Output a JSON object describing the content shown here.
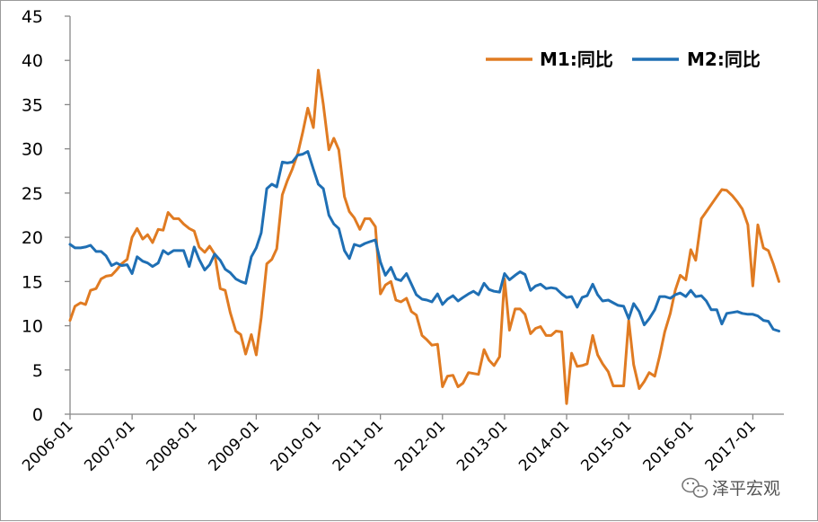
{
  "chart_data": {
    "type": "line",
    "title": "",
    "xlabel": "",
    "ylabel": "",
    "ylim": [
      0,
      45
    ],
    "yticks": [
      0,
      5,
      10,
      15,
      20,
      25,
      30,
      35,
      40,
      45
    ],
    "xlim": [
      2006.0,
      2017.5
    ],
    "xticks": [
      {
        "label": "2006-01",
        "t": 2006
      },
      {
        "label": "2007-01",
        "t": 2007
      },
      {
        "label": "2008-01",
        "t": 2008
      },
      {
        "label": "2009-01",
        "t": 2009
      },
      {
        "label": "2010-01",
        "t": 2010
      },
      {
        "label": "2011-01",
        "t": 2011
      },
      {
        "label": "2012-01",
        "t": 2012
      },
      {
        "label": "2013-01",
        "t": 2013
      },
      {
        "label": "2014-01",
        "t": 2014
      },
      {
        "label": "2015-01",
        "t": 2015
      },
      {
        "label": "2016-01",
        "t": 2016
      },
      {
        "label": "2017-01",
        "t": 2017
      }
    ],
    "grid": false,
    "legend_position": "top-right",
    "series": [
      {
        "name": "M1:同比",
        "color": "#e07b22",
        "values": [
          [
            2006.0,
            10.6
          ],
          [
            2006.08,
            12.2
          ],
          [
            2006.17,
            12.6
          ],
          [
            2006.25,
            12.4
          ],
          [
            2006.33,
            14.0
          ],
          [
            2006.42,
            14.2
          ],
          [
            2006.5,
            15.3
          ],
          [
            2006.58,
            15.6
          ],
          [
            2006.67,
            15.7
          ],
          [
            2006.75,
            16.3
          ],
          [
            2006.83,
            17.0
          ],
          [
            2006.92,
            17.5
          ],
          [
            2007.0,
            20.0
          ],
          [
            2007.08,
            21.0
          ],
          [
            2007.17,
            19.8
          ],
          [
            2007.25,
            20.3
          ],
          [
            2007.33,
            19.4
          ],
          [
            2007.42,
            20.9
          ],
          [
            2007.5,
            20.8
          ],
          [
            2007.58,
            22.8
          ],
          [
            2007.67,
            22.1
          ],
          [
            2007.75,
            22.1
          ],
          [
            2007.83,
            21.5
          ],
          [
            2007.92,
            21.0
          ],
          [
            2008.0,
            20.7
          ],
          [
            2008.08,
            18.9
          ],
          [
            2008.17,
            18.3
          ],
          [
            2008.25,
            19.0
          ],
          [
            2008.33,
            18.1
          ],
          [
            2008.42,
            14.2
          ],
          [
            2008.5,
            14.0
          ],
          [
            2008.58,
            11.5
          ],
          [
            2008.67,
            9.4
          ],
          [
            2008.75,
            9.0
          ],
          [
            2008.83,
            6.8
          ],
          [
            2008.92,
            9.0
          ],
          [
            2009.0,
            6.7
          ],
          [
            2009.08,
            10.9
          ],
          [
            2009.17,
            17.0
          ],
          [
            2009.25,
            17.5
          ],
          [
            2009.33,
            18.7
          ],
          [
            2009.42,
            24.8
          ],
          [
            2009.5,
            26.4
          ],
          [
            2009.58,
            27.7
          ],
          [
            2009.67,
            29.5
          ],
          [
            2009.75,
            31.9
          ],
          [
            2009.83,
            34.6
          ],
          [
            2009.92,
            32.4
          ],
          [
            2010.0,
            38.9
          ],
          [
            2010.08,
            35.0
          ],
          [
            2010.17,
            29.9
          ],
          [
            2010.25,
            31.2
          ],
          [
            2010.33,
            29.9
          ],
          [
            2010.42,
            24.6
          ],
          [
            2010.5,
            22.9
          ],
          [
            2010.58,
            22.2
          ],
          [
            2010.67,
            20.9
          ],
          [
            2010.75,
            22.1
          ],
          [
            2010.83,
            22.1
          ],
          [
            2010.92,
            21.2
          ],
          [
            2011.0,
            13.6
          ],
          [
            2011.08,
            14.6
          ],
          [
            2011.17,
            15.0
          ],
          [
            2011.25,
            12.9
          ],
          [
            2011.33,
            12.7
          ],
          [
            2011.42,
            13.1
          ],
          [
            2011.5,
            11.6
          ],
          [
            2011.58,
            11.2
          ],
          [
            2011.67,
            8.9
          ],
          [
            2011.75,
            8.4
          ],
          [
            2011.83,
            7.8
          ],
          [
            2011.92,
            7.9
          ],
          [
            2012.0,
            3.1
          ],
          [
            2012.08,
            4.3
          ],
          [
            2012.17,
            4.4
          ],
          [
            2012.25,
            3.1
          ],
          [
            2012.33,
            3.5
          ],
          [
            2012.42,
            4.7
          ],
          [
            2012.5,
            4.6
          ],
          [
            2012.58,
            4.5
          ],
          [
            2012.67,
            7.3
          ],
          [
            2012.75,
            6.1
          ],
          [
            2012.83,
            5.5
          ],
          [
            2012.92,
            6.5
          ],
          [
            2013.0,
            15.3
          ],
          [
            2013.08,
            9.5
          ],
          [
            2013.17,
            11.9
          ],
          [
            2013.25,
            11.9
          ],
          [
            2013.33,
            11.3
          ],
          [
            2013.42,
            9.1
          ],
          [
            2013.5,
            9.7
          ],
          [
            2013.58,
            9.9
          ],
          [
            2013.67,
            8.9
          ],
          [
            2013.75,
            8.9
          ],
          [
            2013.83,
            9.4
          ],
          [
            2013.92,
            9.3
          ],
          [
            2014.0,
            1.2
          ],
          [
            2014.08,
            6.9
          ],
          [
            2014.17,
            5.4
          ],
          [
            2014.25,
            5.5
          ],
          [
            2014.33,
            5.7
          ],
          [
            2014.42,
            8.9
          ],
          [
            2014.5,
            6.7
          ],
          [
            2014.58,
            5.7
          ],
          [
            2014.67,
            4.8
          ],
          [
            2014.75,
            3.2
          ],
          [
            2014.83,
            3.2
          ],
          [
            2014.92,
            3.2
          ],
          [
            2015.0,
            10.6
          ],
          [
            2015.08,
            5.6
          ],
          [
            2015.17,
            2.9
          ],
          [
            2015.25,
            3.7
          ],
          [
            2015.33,
            4.7
          ],
          [
            2015.42,
            4.3
          ],
          [
            2015.5,
            6.6
          ],
          [
            2015.58,
            9.3
          ],
          [
            2015.67,
            11.4
          ],
          [
            2015.75,
            14.0
          ],
          [
            2015.83,
            15.7
          ],
          [
            2015.92,
            15.2
          ],
          [
            2016.0,
            18.6
          ],
          [
            2016.08,
            17.4
          ],
          [
            2016.17,
            22.1
          ],
          [
            2016.25,
            22.9
          ],
          [
            2016.33,
            23.7
          ],
          [
            2016.42,
            24.6
          ],
          [
            2016.5,
            25.4
          ],
          [
            2016.58,
            25.3
          ],
          [
            2016.67,
            24.7
          ],
          [
            2016.75,
            24.0
          ],
          [
            2016.83,
            23.2
          ],
          [
            2016.92,
            21.4
          ],
          [
            2017.0,
            14.5
          ],
          [
            2017.08,
            21.4
          ],
          [
            2017.17,
            18.8
          ],
          [
            2017.25,
            18.5
          ],
          [
            2017.33,
            17.0
          ],
          [
            2017.42,
            15.0
          ]
        ]
      },
      {
        "name": "M2:同比",
        "color": "#1f6fb4",
        "values": [
          [
            2006.0,
            19.2
          ],
          [
            2006.08,
            18.8
          ],
          [
            2006.17,
            18.8
          ],
          [
            2006.25,
            18.9
          ],
          [
            2006.33,
            19.1
          ],
          [
            2006.42,
            18.4
          ],
          [
            2006.5,
            18.4
          ],
          [
            2006.58,
            17.9
          ],
          [
            2006.67,
            16.8
          ],
          [
            2006.75,
            17.1
          ],
          [
            2006.83,
            16.8
          ],
          [
            2006.92,
            16.9
          ],
          [
            2007.0,
            15.9
          ],
          [
            2007.08,
            17.8
          ],
          [
            2007.17,
            17.3
          ],
          [
            2007.25,
            17.1
          ],
          [
            2007.33,
            16.7
          ],
          [
            2007.42,
            17.1
          ],
          [
            2007.5,
            18.5
          ],
          [
            2007.58,
            18.1
          ],
          [
            2007.67,
            18.5
          ],
          [
            2007.75,
            18.5
          ],
          [
            2007.83,
            18.5
          ],
          [
            2007.92,
            16.7
          ],
          [
            2008.0,
            18.9
          ],
          [
            2008.08,
            17.5
          ],
          [
            2008.17,
            16.3
          ],
          [
            2008.25,
            16.9
          ],
          [
            2008.33,
            18.1
          ],
          [
            2008.42,
            17.4
          ],
          [
            2008.5,
            16.4
          ],
          [
            2008.58,
            16.0
          ],
          [
            2008.67,
            15.3
          ],
          [
            2008.75,
            15.0
          ],
          [
            2008.83,
            14.8
          ],
          [
            2008.92,
            17.8
          ],
          [
            2009.0,
            18.8
          ],
          [
            2009.08,
            20.5
          ],
          [
            2009.17,
            25.5
          ],
          [
            2009.25,
            26.0
          ],
          [
            2009.33,
            25.7
          ],
          [
            2009.42,
            28.5
          ],
          [
            2009.5,
            28.4
          ],
          [
            2009.58,
            28.5
          ],
          [
            2009.67,
            29.3
          ],
          [
            2009.75,
            29.4
          ],
          [
            2009.83,
            29.7
          ],
          [
            2009.92,
            27.7
          ],
          [
            2010.0,
            26.0
          ],
          [
            2010.08,
            25.5
          ],
          [
            2010.17,
            22.5
          ],
          [
            2010.25,
            21.5
          ],
          [
            2010.33,
            21.0
          ],
          [
            2010.42,
            18.5
          ],
          [
            2010.5,
            17.6
          ],
          [
            2010.58,
            19.2
          ],
          [
            2010.67,
            19.0
          ],
          [
            2010.75,
            19.3
          ],
          [
            2010.83,
            19.5
          ],
          [
            2010.92,
            19.7
          ],
          [
            2011.0,
            17.2
          ],
          [
            2011.08,
            15.7
          ],
          [
            2011.17,
            16.6
          ],
          [
            2011.25,
            15.3
          ],
          [
            2011.33,
            15.1
          ],
          [
            2011.42,
            15.9
          ],
          [
            2011.5,
            14.7
          ],
          [
            2011.58,
            13.5
          ],
          [
            2011.67,
            13.0
          ],
          [
            2011.75,
            12.9
          ],
          [
            2011.83,
            12.7
          ],
          [
            2011.92,
            13.6
          ],
          [
            2012.0,
            12.4
          ],
          [
            2012.08,
            13.0
          ],
          [
            2012.17,
            13.4
          ],
          [
            2012.25,
            12.8
          ],
          [
            2012.33,
            13.2
          ],
          [
            2012.42,
            13.6
          ],
          [
            2012.5,
            13.9
          ],
          [
            2012.58,
            13.5
          ],
          [
            2012.67,
            14.8
          ],
          [
            2012.75,
            14.1
          ],
          [
            2012.83,
            13.9
          ],
          [
            2012.92,
            13.8
          ],
          [
            2013.0,
            15.9
          ],
          [
            2013.08,
            15.2
          ],
          [
            2013.17,
            15.7
          ],
          [
            2013.25,
            16.1
          ],
          [
            2013.33,
            15.8
          ],
          [
            2013.42,
            14.0
          ],
          [
            2013.5,
            14.5
          ],
          [
            2013.58,
            14.7
          ],
          [
            2013.67,
            14.2
          ],
          [
            2013.75,
            14.3
          ],
          [
            2013.83,
            14.2
          ],
          [
            2013.92,
            13.6
          ],
          [
            2014.0,
            13.2
          ],
          [
            2014.08,
            13.3
          ],
          [
            2014.17,
            12.1
          ],
          [
            2014.25,
            13.2
          ],
          [
            2014.33,
            13.4
          ],
          [
            2014.42,
            14.7
          ],
          [
            2014.5,
            13.5
          ],
          [
            2014.58,
            12.8
          ],
          [
            2014.67,
            12.9
          ],
          [
            2014.75,
            12.6
          ],
          [
            2014.83,
            12.3
          ],
          [
            2014.92,
            12.2
          ],
          [
            2015.0,
            10.8
          ],
          [
            2015.08,
            12.5
          ],
          [
            2015.17,
            11.6
          ],
          [
            2015.25,
            10.1
          ],
          [
            2015.33,
            10.8
          ],
          [
            2015.42,
            11.8
          ],
          [
            2015.5,
            13.3
          ],
          [
            2015.58,
            13.3
          ],
          [
            2015.67,
            13.1
          ],
          [
            2015.75,
            13.5
          ],
          [
            2015.83,
            13.7
          ],
          [
            2015.92,
            13.3
          ],
          [
            2016.0,
            14.0
          ],
          [
            2016.08,
            13.3
          ],
          [
            2016.17,
            13.4
          ],
          [
            2016.25,
            12.8
          ],
          [
            2016.33,
            11.8
          ],
          [
            2016.42,
            11.8
          ],
          [
            2016.5,
            10.2
          ],
          [
            2016.58,
            11.4
          ],
          [
            2016.67,
            11.5
          ],
          [
            2016.75,
            11.6
          ],
          [
            2016.83,
            11.4
          ],
          [
            2016.92,
            11.3
          ],
          [
            2017.0,
            11.3
          ],
          [
            2017.08,
            11.1
          ],
          [
            2017.17,
            10.6
          ],
          [
            2017.25,
            10.5
          ],
          [
            2017.33,
            9.6
          ],
          [
            2017.42,
            9.4
          ]
        ]
      }
    ]
  },
  "watermark": {
    "text": "泽平宏观",
    "icon": "wechat-icon"
  }
}
